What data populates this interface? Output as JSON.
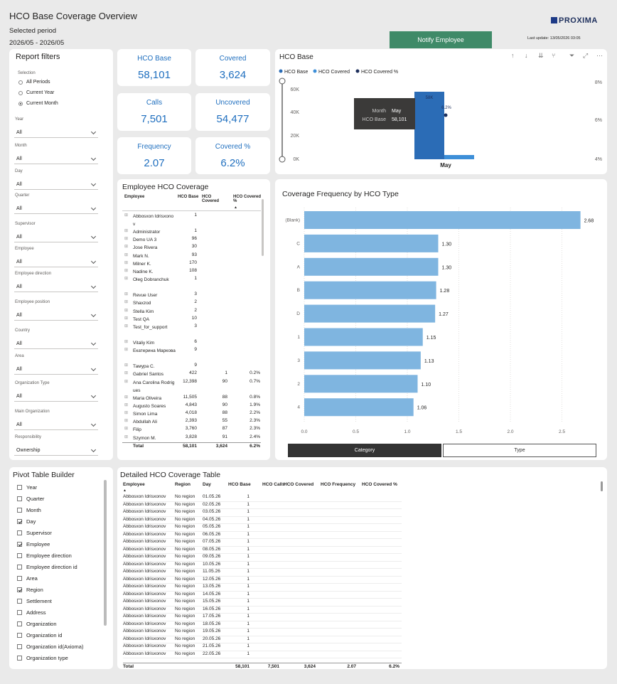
{
  "header": {
    "title": "HCO Base Coverage Overview",
    "selected_period_label": "Selected period",
    "period_value": "2026/05 - 2026/05",
    "notify_button": "Notify Employee",
    "logo_text": "PROXIMA",
    "last_update": "Last update: 13/05/2026 03:05"
  },
  "filters": {
    "title": "Report filters",
    "selection_label": "Selection",
    "options": [
      "All Periods",
      "Current Year",
      "Current Month"
    ],
    "selected_option": "Current Month",
    "dropdowns": [
      {
        "label": "Year",
        "value": "All"
      },
      {
        "label": "Month",
        "value": "All"
      },
      {
        "label": "Day",
        "value": "All"
      },
      {
        "label": "Quarter",
        "value": "All"
      },
      {
        "label": "Supervisor",
        "value": "All"
      },
      {
        "label": "Employee",
        "value": "All"
      },
      {
        "label": "Employee direction",
        "value": "All"
      },
      {
        "label": "Employee position",
        "value": "All"
      },
      {
        "label": "Country",
        "value": "All"
      },
      {
        "label": "Area",
        "value": "All"
      },
      {
        "label": "Organization Type",
        "value": "All"
      },
      {
        "label": "Main Organization",
        "value": "All"
      },
      {
        "label": "Responsibility",
        "value": "Ownership"
      }
    ]
  },
  "kpis": {
    "hco_base": {
      "label": "HCO Base",
      "value": "58,101"
    },
    "covered": {
      "label": "Covered",
      "value": "3,624"
    },
    "calls": {
      "label": "Calls",
      "value": "7,501"
    },
    "uncovered": {
      "label": "Uncovered",
      "value": "54,477"
    },
    "frequency": {
      "label": "Frequency",
      "value": "2.07"
    },
    "covered_pct": {
      "label": "Covered %",
      "value": "6.2%"
    }
  },
  "hco_base_chart": {
    "title": "HCO Base",
    "legend": [
      "HCO Base",
      "HCO Covered",
      "HCO Covered %"
    ],
    "colors": {
      "base": "#2b6cb6",
      "covered": "#3d8fd8",
      "pct": "#1d2f5c"
    },
    "y_ticks": [
      "60K",
      "40K",
      "20K",
      "0K"
    ],
    "y2_ticks": [
      "8%",
      "6%",
      "4%"
    ],
    "category": "May",
    "bar_label": "58K",
    "pct_label": "6.2%",
    "tooltip": {
      "month_label": "Month",
      "month_value": "May",
      "base_label": "HCO Base",
      "base_value": "58,101"
    }
  },
  "employee_table": {
    "title": "Employee HCO Coverage",
    "columns": [
      "Employee",
      "HCO Base",
      "HCO Covered",
      "HCO Covered %"
    ],
    "rows": [
      {
        "name": "Abbosxon Idrisxonov",
        "base": "1",
        "covered": "",
        "pct": ""
      },
      {
        "name": "Administrator",
        "base": "1",
        "covered": "",
        "pct": ""
      },
      {
        "name": "Demo UA 3",
        "base": "96",
        "covered": "",
        "pct": ""
      },
      {
        "name": "Jose Rivera",
        "base": "30",
        "covered": "",
        "pct": ""
      },
      {
        "name": "Mark N.",
        "base": "93",
        "covered": "",
        "pct": ""
      },
      {
        "name": "Milner K.",
        "base": "170",
        "covered": "",
        "pct": ""
      },
      {
        "name": "Nadine K.",
        "base": "108",
        "covered": "",
        "pct": ""
      },
      {
        "name": "Oleg Dobranchuk",
        "base": "1",
        "covered": "",
        "pct": ""
      },
      {
        "name": "Revue User",
        "base": "3",
        "covered": "",
        "pct": ""
      },
      {
        "name": "Shaxzod",
        "base": "2",
        "covered": "",
        "pct": ""
      },
      {
        "name": "Stella Kim",
        "base": "2",
        "covered": "",
        "pct": ""
      },
      {
        "name": "Test QA",
        "base": "10",
        "covered": "",
        "pct": ""
      },
      {
        "name": "Test_for_support",
        "base": "3",
        "covered": "",
        "pct": ""
      },
      {
        "name": "Vitaliy Kim",
        "base": "6",
        "covered": "",
        "pct": ""
      },
      {
        "name": "Екатерина Маркова",
        "base": "9",
        "covered": "",
        "pct": ""
      },
      {
        "name": "Тамура С.",
        "base": "9",
        "covered": "",
        "pct": ""
      },
      {
        "name": "Gabriel Santos",
        "base": "422",
        "covered": "1",
        "pct": "0.2%"
      },
      {
        "name": "Ana Carolina Rodrigues",
        "base": "12,398",
        "covered": "90",
        "pct": "0.7%"
      },
      {
        "name": "Maria Oliveira",
        "base": "11,505",
        "covered": "88",
        "pct": "0.8%"
      },
      {
        "name": "Augusto Soares",
        "base": "4,843",
        "covered": "90",
        "pct": "1.9%"
      },
      {
        "name": "Simon Lima",
        "base": "4,018",
        "covered": "88",
        "pct": "2.2%"
      },
      {
        "name": "Abdullah Ali",
        "base": "2,393",
        "covered": "55",
        "pct": "2.3%"
      },
      {
        "name": "Filip",
        "base": "3,760",
        "covered": "87",
        "pct": "2.3%"
      },
      {
        "name": "Szymon M.",
        "base": "3,828",
        "covered": "91",
        "pct": "2.4%"
      }
    ],
    "total": {
      "label": "Total",
      "base": "58,101",
      "covered": "3,624",
      "pct": "6.2%"
    }
  },
  "coverage_chart": {
    "title": "Coverage Frequency by HCO Type",
    "buttons": [
      "Category",
      "Type"
    ],
    "active_button": "Category",
    "bar_color": "#7fb5e0"
  },
  "chart_data": {
    "type": "bar",
    "orientation": "horizontal",
    "title": "Coverage Frequency by HCO Type",
    "categories": [
      "(Blank)",
      "C",
      "A",
      "B",
      "D",
      "1",
      "3",
      "2",
      "4"
    ],
    "values": [
      2.68,
      1.3,
      1.3,
      1.28,
      1.27,
      1.15,
      1.13,
      1.1,
      1.06
    ],
    "value_labels": [
      "2.68",
      "1.30",
      "1.30",
      "1.28",
      "1.27",
      "1.15",
      "1.13",
      "1.10",
      "1.06"
    ],
    "xlim": [
      0,
      2.8
    ],
    "x_ticks": [
      "0.0",
      "0.5",
      "1.0",
      "1.5",
      "2.0",
      "2.5"
    ],
    "x_tick_values": [
      0,
      0.5,
      1.0,
      1.5,
      2.0,
      2.5
    ]
  },
  "pivot": {
    "title": "Pivot Table Builder",
    "items": [
      {
        "label": "Year",
        "checked": false
      },
      {
        "label": "Quarter",
        "checked": false
      },
      {
        "label": "Month",
        "checked": false
      },
      {
        "label": "Day",
        "checked": true
      },
      {
        "label": "Supervisor",
        "checked": false
      },
      {
        "label": "Employee",
        "checked": true
      },
      {
        "label": "Employee direction",
        "checked": false
      },
      {
        "label": "Employee direction id",
        "checked": false
      },
      {
        "label": "Area",
        "checked": false
      },
      {
        "label": "Region",
        "checked": true
      },
      {
        "label": "Settlement",
        "checked": false
      },
      {
        "label": "Address",
        "checked": false
      },
      {
        "label": "Organization",
        "checked": false
      },
      {
        "label": "Organization id",
        "checked": false
      },
      {
        "label": "Organization id(Axioma)",
        "checked": false
      },
      {
        "label": "Organization type",
        "checked": false
      }
    ]
  },
  "detail_table": {
    "title": "Detailed HCO Coverage Table",
    "columns": [
      "Employee",
      "Region",
      "Day",
      "HCO Base",
      "HCO Calls",
      "HCO Covered",
      "HCO Frequency",
      "HCO Covered %"
    ],
    "employee": "Abbosxon Idrisxonov",
    "region": "No region",
    "base": "1",
    "days": [
      "01.05.26",
      "02.05.26",
      "03.05.26",
      "04.05.26",
      "05.05.26",
      "06.05.26",
      "07.05.26",
      "08.05.26",
      "09.05.26",
      "10.05.26",
      "11.05.26",
      "12.05.26",
      "13.05.26",
      "14.05.26",
      "15.05.26",
      "16.05.26",
      "17.05.26",
      "18.05.26",
      "19.05.26",
      "20.05.26",
      "21.05.26",
      "22.05.26"
    ],
    "total": {
      "label": "Total",
      "base": "58,101",
      "calls": "7,501",
      "covered": "3,624",
      "frequency": "2.07",
      "pct": "6.2%"
    }
  }
}
